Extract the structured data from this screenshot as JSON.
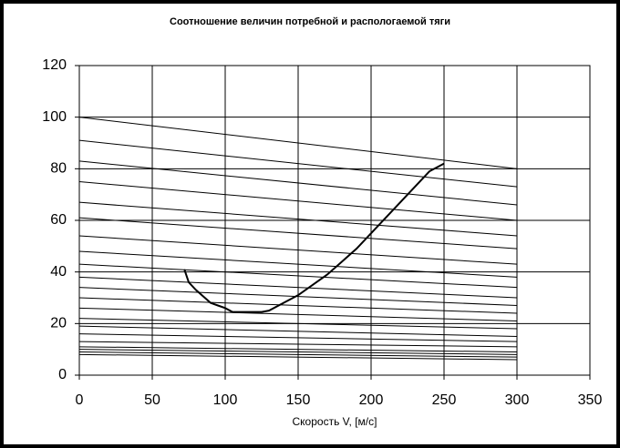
{
  "chart_data": {
    "type": "line",
    "title": "Соотношение величин потребной и распологаемой тяги",
    "x_label": "Скорость V, [м/с]",
    "xlim": [
      0,
      350
    ],
    "xticks": [
      0,
      50,
      100,
      150,
      200,
      250,
      300,
      350
    ],
    "ylim": [
      0,
      120
    ],
    "yticks": [
      0,
      20,
      40,
      60,
      80,
      100,
      120
    ],
    "grid": true,
    "series": [
      {
        "color": "#000000",
        "x": [
          0,
          300
        ],
        "values": [
          100,
          80
        ]
      },
      {
        "color": "#000000",
        "x": [
          0,
          300
        ],
        "values": [
          91,
          73
        ]
      },
      {
        "color": "#000000",
        "x": [
          0,
          300
        ],
        "values": [
          83,
          66
        ]
      },
      {
        "color": "#000000",
        "x": [
          0,
          300
        ],
        "values": [
          75,
          60
        ]
      },
      {
        "color": "#000000",
        "x": [
          0,
          300
        ],
        "values": [
          67,
          54
        ]
      },
      {
        "color": "#000000",
        "x": [
          0,
          300
        ],
        "values": [
          61,
          49
        ]
      },
      {
        "color": "#000000",
        "x": [
          0,
          300
        ],
        "values": [
          54,
          43
        ]
      },
      {
        "color": "#000000",
        "x": [
          0,
          300
        ],
        "values": [
          48,
          38
        ]
      },
      {
        "color": "#000000",
        "x": [
          0,
          300
        ],
        "values": [
          43,
          34
        ]
      },
      {
        "color": "#000000",
        "x": [
          0,
          300
        ],
        "values": [
          38,
          30
        ]
      },
      {
        "color": "#000000",
        "x": [
          0,
          300
        ],
        "values": [
          34,
          27
        ]
      },
      {
        "color": "#000000",
        "x": [
          0,
          300
        ],
        "values": [
          30,
          24
        ]
      },
      {
        "color": "#000000",
        "x": [
          0,
          300
        ],
        "values": [
          26,
          21
        ]
      },
      {
        "color": "#000000",
        "x": [
          0,
          300
        ],
        "values": [
          22,
          18
        ]
      },
      {
        "color": "#000000",
        "x": [
          0,
          300
        ],
        "values": [
          19,
          15
        ]
      },
      {
        "color": "#000000",
        "x": [
          0,
          300
        ],
        "values": [
          16,
          13
        ]
      },
      {
        "color": "#000000",
        "x": [
          0,
          300
        ],
        "values": [
          13,
          11
        ]
      },
      {
        "color": "#000000",
        "x": [
          0,
          300
        ],
        "values": [
          11,
          9
        ]
      },
      {
        "color": "#000000",
        "x": [
          0,
          300
        ],
        "values": [
          10,
          8
        ]
      },
      {
        "color": "#000000",
        "x": [
          0,
          300
        ],
        "values": [
          9,
          7
        ]
      },
      {
        "color": "#000000",
        "x": [
          0,
          300
        ],
        "values": [
          8,
          6
        ]
      },
      {
        "color": "#000000",
        "line_width": 2,
        "x": [
          72,
          75,
          80,
          90,
          95,
          100,
          105,
          110,
          120,
          125,
          130,
          140,
          150,
          160,
          170,
          180,
          190,
          200,
          210,
          220,
          230,
          240,
          250
        ],
        "values": [
          41,
          36,
          33,
          28,
          27,
          26,
          24.5,
          24.5,
          24.5,
          24.5,
          25,
          28,
          31,
          35,
          39,
          44,
          49,
          55,
          61,
          67,
          73,
          79,
          82
        ]
      }
    ]
  }
}
